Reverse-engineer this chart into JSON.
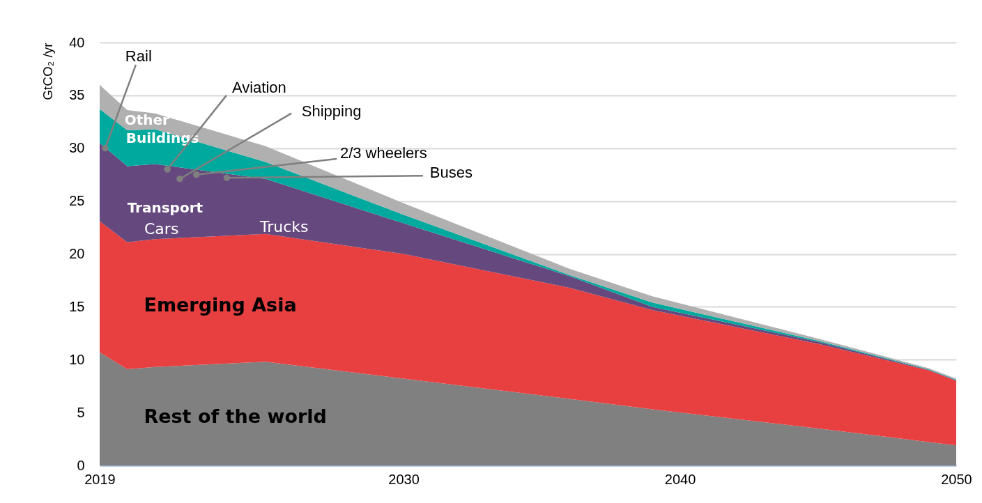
{
  "chart_data": {
    "type": "area",
    "stacked": true,
    "ylabel": "GtCO₂ /yr",
    "x": [
      2019,
      2020,
      2021,
      2025,
      2030,
      2036,
      2039,
      2045,
      2049,
      2050
    ],
    "series": [
      {
        "name": "Rest of the world",
        "color": "#808080",
        "values": [
          10.7,
          9.1,
          9.3,
          9.8,
          8.2,
          6.3,
          5.3,
          3.5,
          2.2,
          1.9
        ]
      },
      {
        "name": "Emerging Asia",
        "color": "#e84040",
        "values": [
          12.4,
          12.0,
          12.1,
          12.1,
          11.8,
          10.5,
          9.4,
          8.0,
          6.8,
          6.1
        ]
      },
      {
        "name": "Transport",
        "color": "#65487e",
        "values": [
          7.4,
          7.2,
          7.1,
          5.2,
          2.9,
          1.1,
          0.3,
          0.2,
          0.05,
          0.05
        ]
      },
      {
        "name": "Buildings",
        "color": "#00a99d",
        "values": [
          3.2,
          3.4,
          3.3,
          1.6,
          0.8,
          0.1,
          0.4,
          0.1,
          0.05,
          0.05
        ]
      },
      {
        "name": "Other",
        "color": "#b0b0b0",
        "values": [
          2.3,
          1.9,
          1.5,
          1.5,
          1.1,
          0.6,
          0.6,
          0.2,
          0.1,
          0.1
        ]
      }
    ],
    "xlim": [
      2019,
      2050
    ],
    "xticks": [
      2019,
      2030,
      2040,
      2050
    ],
    "ylim": [
      0,
      40
    ],
    "yticks": [
      0,
      5,
      10,
      15,
      20,
      25,
      30,
      35,
      40
    ],
    "grid": "y",
    "legend": false,
    "annotations": [
      "Trucks",
      "Cars",
      {
        "text": "Rail",
        "x": 2019.2,
        "y": 30.0
      },
      {
        "text": "Aviation",
        "x": 2021.45,
        "y": 28.0
      },
      {
        "text": "Shipping",
        "x": 2021.9,
        "y": 27.1
      },
      {
        "text": "2/3 wheelers",
        "x": 2022.5,
        "y": 27.5
      },
      {
        "text": "Buses",
        "x": 2023.6,
        "y": 27.2
      }
    ]
  }
}
